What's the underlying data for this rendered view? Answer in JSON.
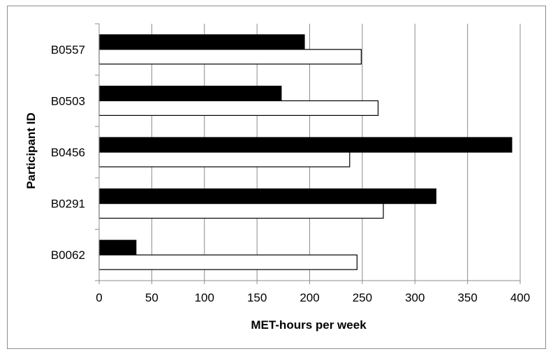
{
  "chart_data": {
    "type": "bar",
    "orientation": "horizontal",
    "categories": [
      "B0557",
      "B0503",
      "B0456",
      "B0291",
      "B0062"
    ],
    "series": [
      {
        "values": [
          195,
          173,
          392,
          320,
          35
        ],
        "color": "#000000"
      },
      {
        "values": [
          249,
          265,
          238,
          270,
          245
        ],
        "color": "#ffffff"
      }
    ],
    "xlabel": "MET-hours per week",
    "ylabel": "Participant ID",
    "xlim": [
      0,
      400
    ],
    "xticks": [
      "0",
      "50",
      "100",
      "150",
      "200",
      "250",
      "300",
      "350",
      "400"
    ],
    "grid": "vertical",
    "legend": "none"
  }
}
